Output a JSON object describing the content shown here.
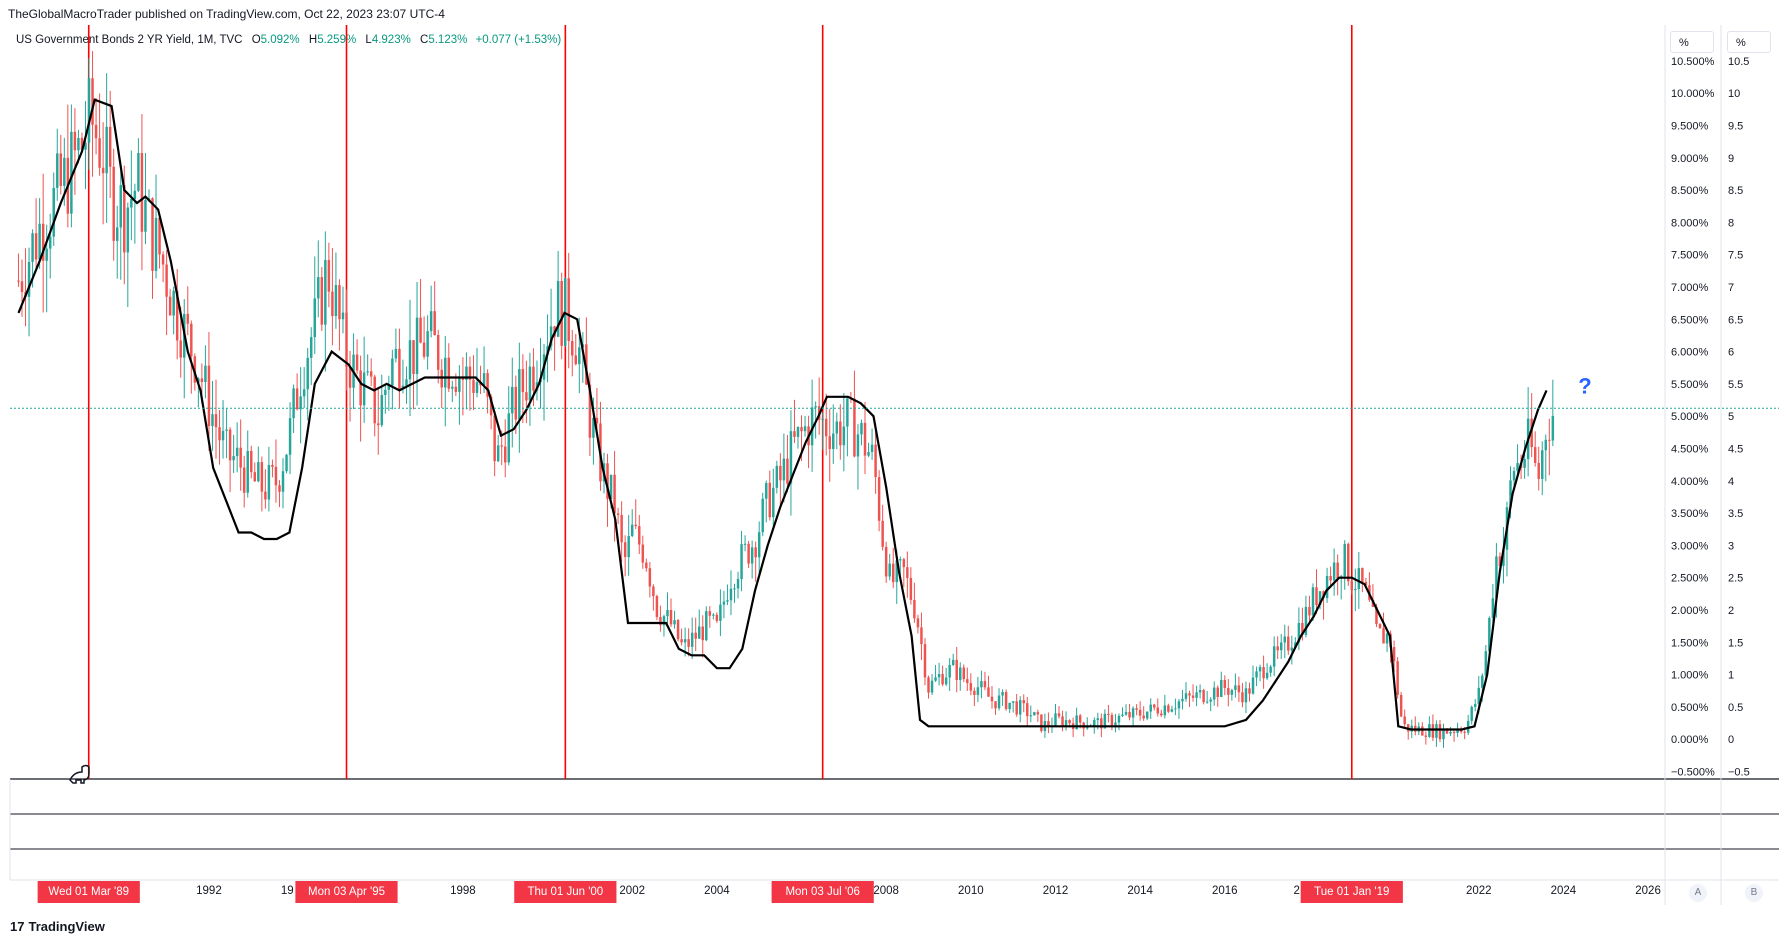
{
  "header": {
    "publisher": "TheGlobalMacroTrader published on TradingView.com, Oct 22, 2023 23:07 UTC-4"
  },
  "legend": {
    "symbol": "US Government Bonds 2 YR Yield, 1M, TVC",
    "open_label": "O",
    "open": "5.092%",
    "high_label": "H",
    "high": "5.259%",
    "low_label": "L",
    "low": "4.923%",
    "close_label": "C",
    "close": "5.123%",
    "change": "+0.077 (+1.53%)"
  },
  "scale_buttons": {
    "left": "%",
    "right": "%"
  },
  "bottom_buttons": {
    "a": "A",
    "b": "B"
  },
  "brand": {
    "logo": "17",
    "name": "TradingView"
  },
  "annotation": {
    "question_mark": "?"
  },
  "colors": {
    "up": "#26a69a",
    "down": "#ef5350",
    "overlay": "#000000",
    "vline": "#ff0000",
    "date_label_bg": "#f23645",
    "last_price_line": "#26a69a",
    "question": "#2962ff"
  },
  "icons": {
    "replay": "dinosaur-icon"
  },
  "chart_data": {
    "type": "candlestick",
    "title": "",
    "xlabel": "",
    "ylabel": "",
    "ylim": [
      -0.6,
      10.7
    ],
    "xlim": [
      1987.3,
      2026.4
    ],
    "right_axis_1_ticks": [
      "10.500%",
      "10.000%",
      "9.500%",
      "9.000%",
      "8.500%",
      "8.000%",
      "7.500%",
      "7.000%",
      "6.500%",
      "6.000%",
      "5.500%",
      "5.000%",
      "4.500%",
      "4.000%",
      "3.500%",
      "3.000%",
      "2.500%",
      "2.000%",
      "1.500%",
      "1.000%",
      "0.500%",
      "0.000%",
      "−0.500%"
    ],
    "right_axis_2_ticks": [
      "10.5",
      "10",
      "9.5",
      "9",
      "8.5",
      "8",
      "7.5",
      "7",
      "6.5",
      "6",
      "5.5",
      "5",
      "4.5",
      "4",
      "3.5",
      "3",
      "2.5",
      "2",
      "1.5",
      "1",
      "0.5",
      "0",
      "−0.5"
    ],
    "x_ticks": [
      "1992",
      "1998",
      "2002",
      "2004",
      "2008",
      "2010",
      "2012",
      "2014",
      "2016",
      "2022",
      "2024",
      "2026"
    ],
    "x_tick_values": [
      1992,
      1998,
      2002,
      2004,
      2008,
      2010,
      2012,
      2014,
      2016,
      2022,
      2024,
      2026
    ],
    "x_partial_labels": [
      {
        "text": "19",
        "x": 1993.85
      },
      {
        "text": "2",
        "x": 2017.7
      },
      {
        "text": "0",
        "x": 2019.95
      }
    ],
    "vertical_markers": [
      {
        "label": "Wed 01 Mar '89",
        "x": 1989.16
      },
      {
        "label": "Mon 03 Apr '95",
        "x": 1995.25
      },
      {
        "label": "Thu 01 Jun '00",
        "x": 2000.42
      },
      {
        "label": "Mon 03 Jul '06",
        "x": 2006.5
      },
      {
        "label": "Tue 01 Jan '19",
        "x": 2019.0
      }
    ],
    "last_price": 5.123,
    "price_path": {
      "x": [
        1987.5,
        1988.0,
        1988.5,
        1989.0,
        1989.2,
        1989.5,
        1989.7,
        1990.0,
        1990.3,
        1990.6,
        1990.9,
        1991.3,
        1991.7,
        1992.0,
        1992.4,
        1992.7,
        1993.0,
        1993.3,
        1993.6,
        1993.9,
        1994.2,
        1994.5,
        1994.8,
        1995.0,
        1995.2,
        1995.5,
        1995.8,
        1996.0,
        1996.3,
        1996.6,
        1996.9,
        1997.2,
        1997.5,
        1997.8,
        1998.0,
        1998.3,
        1998.5,
        1998.8,
        1999.0,
        1999.3,
        1999.6,
        1999.9,
        2000.2,
        2000.4,
        2000.7,
        2001.0,
        2001.3,
        2001.6,
        2001.8,
        2002.0,
        2002.3,
        2002.6,
        2002.9,
        2003.2,
        2003.5,
        2003.8,
        2004.0,
        2004.3,
        2004.6,
        2004.9,
        2005.2,
        2005.5,
        2005.8,
        2006.0,
        2006.3,
        2006.5,
        2006.8,
        2007.1,
        2007.4,
        2007.7,
        2007.9,
        2008.1,
        2008.4,
        2008.7,
        2009.0,
        2009.3,
        2009.6,
        2009.9,
        2010.2,
        2010.5,
        2010.8,
        2011.1,
        2011.4,
        2011.7,
        2012.0,
        2012.5,
        2013.0,
        2013.5,
        2014.0,
        2014.5,
        2015.0,
        2015.5,
        2016.0,
        2016.5,
        2017.0,
        2017.3,
        2017.6,
        2017.9,
        2018.2,
        2018.5,
        2018.8,
        2019.0,
        2019.3,
        2019.6,
        2019.9,
        2020.2,
        2020.5,
        2020.8,
        2021.1,
        2021.4,
        2021.7,
        2022.0,
        2022.2,
        2022.4,
        2022.6,
        2022.8,
        2023.0,
        2023.2,
        2023.4,
        2023.6,
        2023.8
      ],
      "y": [
        7.1,
        7.9,
        8.5,
        9.2,
        9.6,
        9.1,
        8.4,
        8.2,
        8.6,
        7.9,
        7.4,
        6.5,
        5.9,
        5.2,
        4.4,
        4.3,
        4.0,
        3.9,
        4.0,
        4.7,
        5.8,
        6.4,
        7.3,
        6.7,
        6.0,
        5.6,
        5.3,
        5.0,
        5.8,
        6.0,
        6.0,
        6.2,
        5.9,
        5.8,
        5.6,
        5.6,
        5.4,
        4.3,
        4.7,
        5.3,
        5.7,
        6.2,
        6.7,
        6.6,
        6.2,
        5.0,
        4.1,
        3.6,
        2.7,
        3.2,
        2.9,
        2.0,
        1.8,
        1.4,
        1.6,
        1.8,
        1.7,
        2.5,
        2.8,
        3.1,
        3.7,
        4.0,
        4.5,
        4.7,
        5.0,
        4.9,
        4.8,
        4.9,
        4.7,
        4.3,
        3.2,
        2.4,
        2.6,
        2.0,
        0.8,
        1.0,
        1.1,
        0.9,
        0.8,
        0.6,
        0.6,
        0.5,
        0.4,
        0.2,
        0.3,
        0.27,
        0.25,
        0.33,
        0.4,
        0.5,
        0.6,
        0.7,
        0.8,
        0.7,
        1.2,
        1.3,
        1.6,
        1.9,
        2.3,
        2.6,
        2.8,
        2.5,
        2.3,
        1.6,
        1.6,
        0.2,
        0.15,
        0.15,
        0.12,
        0.15,
        0.2,
        0.7,
        1.5,
        2.8,
        3.0,
        4.2,
        4.3,
        4.6,
        4.0,
        4.9,
        5.1
      ]
    },
    "overlay_line": {
      "x": [
        1987.5,
        1988.0,
        1988.5,
        1989.0,
        1989.3,
        1989.7,
        1990.0,
        1990.3,
        1990.5,
        1990.8,
        1991.1,
        1991.5,
        1991.8,
        1992.1,
        1992.4,
        1992.7,
        1993.0,
        1993.3,
        1993.6,
        1993.9,
        1994.2,
        1994.5,
        1994.9,
        1995.1,
        1995.3,
        1995.6,
        1995.9,
        1996.2,
        1996.5,
        1996.8,
        1997.1,
        1997.4,
        1997.7,
        1998.0,
        1998.3,
        1998.6,
        1998.9,
        1999.2,
        1999.5,
        1999.8,
        2000.1,
        2000.4,
        2000.7,
        2001.0,
        2001.3,
        2001.6,
        2001.9,
        2002.2,
        2002.5,
        2002.8,
        2003.1,
        2003.4,
        2003.7,
        2004.0,
        2004.3,
        2004.6,
        2004.9,
        2005.2,
        2005.5,
        2005.8,
        2006.1,
        2006.4,
        2006.6,
        2007.0,
        2007.1,
        2007.4,
        2007.7,
        2008.0,
        2008.3,
        2008.6,
        2008.8,
        2009.0,
        2009.5,
        2010.0,
        2010.5,
        2011.0,
        2011.5,
        2012.0,
        2012.5,
        2013.0,
        2013.5,
        2014.0,
        2014.5,
        2015.0,
        2015.5,
        2016.0,
        2016.5,
        2016.9,
        2017.2,
        2017.5,
        2017.8,
        2018.1,
        2018.4,
        2018.7,
        2019.0,
        2019.3,
        2019.6,
        2019.9,
        2020.1,
        2020.4,
        2020.7,
        2021.0,
        2021.3,
        2021.6,
        2021.9,
        2022.2,
        2022.5,
        2022.8,
        2023.1,
        2023.4,
        2023.6
      ],
      "y": [
        6.6,
        7.4,
        8.3,
        9.1,
        9.9,
        9.8,
        8.5,
        8.3,
        8.4,
        8.2,
        7.4,
        6.0,
        5.4,
        4.2,
        3.7,
        3.2,
        3.2,
        3.1,
        3.1,
        3.2,
        4.2,
        5.5,
        6.0,
        5.9,
        5.8,
        5.5,
        5.4,
        5.5,
        5.4,
        5.5,
        5.6,
        5.6,
        5.6,
        5.6,
        5.6,
        5.4,
        4.7,
        4.8,
        5.1,
        5.5,
        6.2,
        6.6,
        6.5,
        5.4,
        4.2,
        3.4,
        1.8,
        1.8,
        1.8,
        1.8,
        1.4,
        1.3,
        1.3,
        1.1,
        1.1,
        1.4,
        2.3,
        3.0,
        3.6,
        4.1,
        4.6,
        5.0,
        5.3,
        5.3,
        5.3,
        5.2,
        5.0,
        3.9,
        2.6,
        1.6,
        0.3,
        0.2,
        0.2,
        0.2,
        0.2,
        0.2,
        0.2,
        0.2,
        0.2,
        0.2,
        0.2,
        0.2,
        0.2,
        0.2,
        0.2,
        0.2,
        0.3,
        0.6,
        0.9,
        1.2,
        1.6,
        1.9,
        2.3,
        2.5,
        2.5,
        2.4,
        2.0,
        1.6,
        0.2,
        0.15,
        0.15,
        0.15,
        0.15,
        0.15,
        0.2,
        1.0,
        2.6,
        3.8,
        4.5,
        5.1,
        5.4
      ]
    }
  }
}
